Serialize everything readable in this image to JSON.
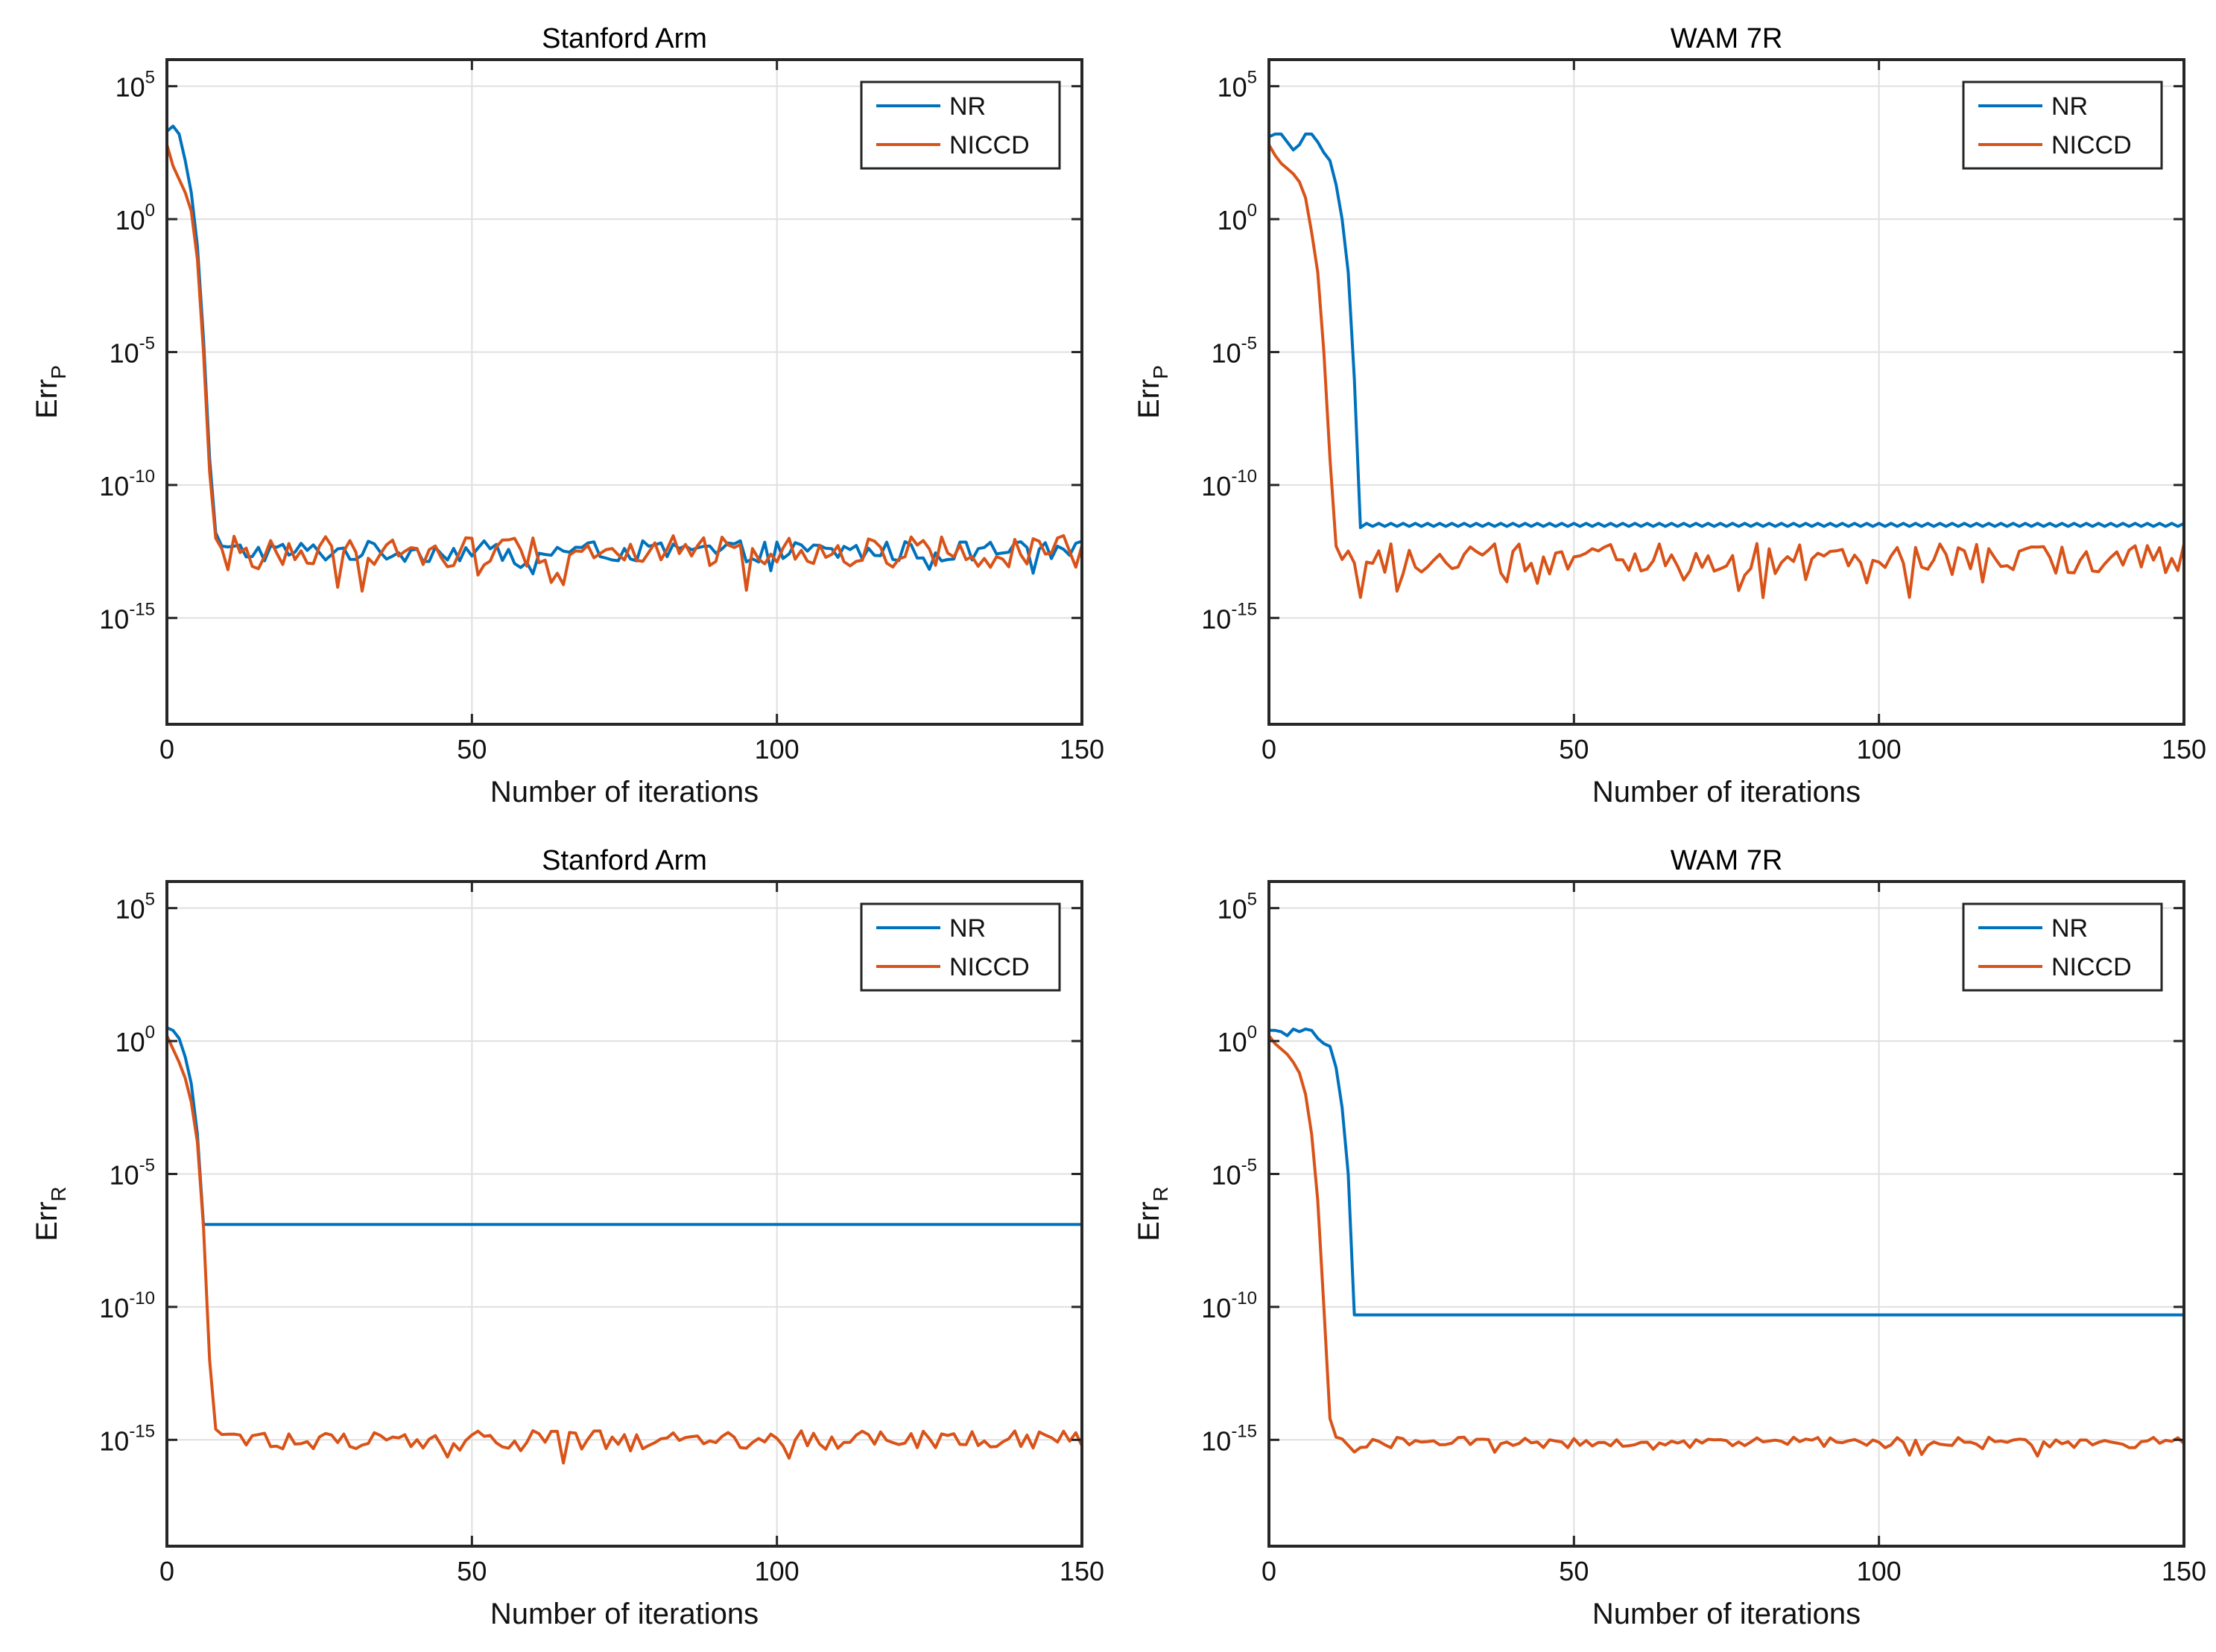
{
  "chart_data": [
    {
      "type": "line",
      "title": "Stanford Arm",
      "xlabel": "Number of iterations",
      "ylabel": {
        "base": "Err",
        "sub": "P"
      },
      "xlim": [
        0,
        150
      ],
      "ylim_log10": [
        -19,
        6
      ],
      "xticks": [
        "0",
        "50",
        "100",
        "150"
      ],
      "yticks": [
        {
          "base": "10",
          "exp": "5"
        },
        {
          "base": "10",
          "exp": "0"
        },
        {
          "base": "10",
          "exp": "-5"
        },
        {
          "base": "10",
          "exp": "-10"
        },
        {
          "base": "10",
          "exp": "-15"
        }
      ],
      "grid": true,
      "legend_position": "top-right",
      "series": [
        {
          "name": "NR",
          "color": "#0072BD",
          "plateau_log10": -12.5,
          "plateau_noise": 0.4,
          "points": [
            [
              0,
              3.3
            ],
            [
              1,
              3.5
            ],
            [
              2,
              3.2
            ],
            [
              3,
              2.2
            ],
            [
              4,
              1.0
            ],
            [
              5,
              -1.0
            ],
            [
              6,
              -4.5
            ],
            [
              7,
              -9
            ],
            [
              8,
              -11.8
            ],
            [
              9,
              -12.3
            ]
          ]
        },
        {
          "name": "NICCD",
          "color": "#D95319",
          "plateau_log10": -12.5,
          "plateau_noise": 0.6,
          "points": [
            [
              0,
              2.8
            ],
            [
              1,
              2.0
            ],
            [
              2,
              1.5
            ],
            [
              3,
              1.0
            ],
            [
              4,
              0.3
            ],
            [
              5,
              -1.5
            ],
            [
              6,
              -5
            ],
            [
              7,
              -9.5
            ],
            [
              8,
              -12.0
            ],
            [
              9,
              -12.4
            ]
          ]
        }
      ]
    },
    {
      "type": "line",
      "title": "WAM 7R",
      "xlabel": "Number of iterations",
      "ylabel": {
        "base": "Err",
        "sub": "P"
      },
      "xlim": [
        0,
        150
      ],
      "ylim_log10": [
        -19,
        6
      ],
      "xticks": [
        "0",
        "50",
        "100",
        "150"
      ],
      "yticks": [
        {
          "base": "10",
          "exp": "5"
        },
        {
          "base": "10",
          "exp": "0"
        },
        {
          "base": "10",
          "exp": "-5"
        },
        {
          "base": "10",
          "exp": "-10"
        },
        {
          "base": "10",
          "exp": "-15"
        }
      ],
      "grid": true,
      "legend_position": "top-right",
      "series": [
        {
          "name": "NR",
          "color": "#0072BD",
          "plateau_log10": -11.5,
          "plateau_noise": 0.06,
          "points": [
            [
              0,
              3.1
            ],
            [
              1,
              3.2
            ],
            [
              2,
              3.2
            ],
            [
              3,
              2.9
            ],
            [
              4,
              2.6
            ],
            [
              5,
              2.8
            ],
            [
              6,
              3.2
            ],
            [
              7,
              3.2
            ],
            [
              8,
              2.9
            ],
            [
              9,
              2.5
            ],
            [
              10,
              2.2
            ],
            [
              11,
              1.3
            ],
            [
              12,
              0
            ],
            [
              13,
              -2
            ],
            [
              14,
              -6
            ],
            [
              15,
              -11.6
            ]
          ]
        },
        {
          "name": "NICCD",
          "color": "#D95319",
          "plateau_log10": -12.8,
          "plateau_noise": 0.6,
          "points": [
            [
              0,
              2.8
            ],
            [
              1,
              2.4
            ],
            [
              2,
              2.1
            ],
            [
              3,
              1.9
            ],
            [
              4,
              1.7
            ],
            [
              5,
              1.4
            ],
            [
              6,
              0.8
            ],
            [
              7,
              -0.5
            ],
            [
              8,
              -2
            ],
            [
              9,
              -5
            ],
            [
              10,
              -9
            ],
            [
              11,
              -12.3
            ],
            [
              12,
              -12.8
            ]
          ]
        }
      ]
    },
    {
      "type": "line",
      "title": "Stanford Arm",
      "xlabel": "Number of iterations",
      "ylabel": {
        "base": "Err",
        "sub": "R"
      },
      "xlim": [
        0,
        150
      ],
      "ylim_log10": [
        -19,
        6
      ],
      "xticks": [
        "0",
        "50",
        "100",
        "150"
      ],
      "yticks": [
        {
          "base": "10",
          "exp": "5"
        },
        {
          "base": "10",
          "exp": "0"
        },
        {
          "base": "10",
          "exp": "-5"
        },
        {
          "base": "10",
          "exp": "-10"
        },
        {
          "base": "10",
          "exp": "-15"
        }
      ],
      "grid": true,
      "legend_position": "top-right",
      "series": [
        {
          "name": "NR",
          "color": "#0072BD",
          "plateau_log10": -6.9,
          "plateau_noise": 0,
          "points": [
            [
              0,
              0.5
            ],
            [
              1,
              0.4
            ],
            [
              2,
              0.1
            ],
            [
              3,
              -0.6
            ],
            [
              4,
              -1.6
            ],
            [
              5,
              -3.5
            ],
            [
              6,
              -6.9
            ]
          ]
        },
        {
          "name": "NICCD",
          "color": "#D95319",
          "plateau_log10": -15.0,
          "plateau_noise": 0.35,
          "points": [
            [
              0,
              0.2
            ],
            [
              1,
              -0.3
            ],
            [
              2,
              -0.8
            ],
            [
              3,
              -1.4
            ],
            [
              4,
              -2.3
            ],
            [
              5,
              -3.8
            ],
            [
              6,
              -7
            ],
            [
              7,
              -12
            ],
            [
              8,
              -14.6
            ],
            [
              9,
              -14.8
            ]
          ]
        }
      ]
    },
    {
      "type": "line",
      "title": "WAM 7R",
      "xlabel": "Number of iterations",
      "ylabel": {
        "base": "Err",
        "sub": "R"
      },
      "xlim": [
        0,
        150
      ],
      "ylim_log10": [
        -19,
        6
      ],
      "xticks": [
        "0",
        "50",
        "100",
        "150"
      ],
      "yticks": [
        {
          "base": "10",
          "exp": "5"
        },
        {
          "base": "10",
          "exp": "0"
        },
        {
          "base": "10",
          "exp": "-5"
        },
        {
          "base": "10",
          "exp": "-10"
        },
        {
          "base": "10",
          "exp": "-15"
        }
      ],
      "grid": true,
      "legend_position": "top-right",
      "series": [
        {
          "name": "NR",
          "color": "#0072BD",
          "plateau_log10": -10.3,
          "plateau_noise": 0,
          "points": [
            [
              0,
              0.4
            ],
            [
              1,
              0.4
            ],
            [
              2,
              0.35
            ],
            [
              3,
              0.2
            ],
            [
              4,
              0.45
            ],
            [
              5,
              0.35
            ],
            [
              6,
              0.45
            ],
            [
              7,
              0.4
            ],
            [
              8,
              0.1
            ],
            [
              9,
              -0.1
            ],
            [
              10,
              -0.2
            ],
            [
              11,
              -1.0
            ],
            [
              12,
              -2.5
            ],
            [
              13,
              -5
            ],
            [
              14,
              -10.3
            ]
          ]
        },
        {
          "name": "NICCD",
          "color": "#D95319",
          "plateau_log10": -15.1,
          "plateau_noise": 0.2,
          "points": [
            [
              0,
              0.2
            ],
            [
              1,
              -0.1
            ],
            [
              2,
              -0.3
            ],
            [
              3,
              -0.5
            ],
            [
              4,
              -0.8
            ],
            [
              5,
              -1.2
            ],
            [
              6,
              -2
            ],
            [
              7,
              -3.5
            ],
            [
              8,
              -6
            ],
            [
              9,
              -10
            ],
            [
              10,
              -14.2
            ],
            [
              11,
              -14.9
            ]
          ]
        }
      ]
    }
  ]
}
